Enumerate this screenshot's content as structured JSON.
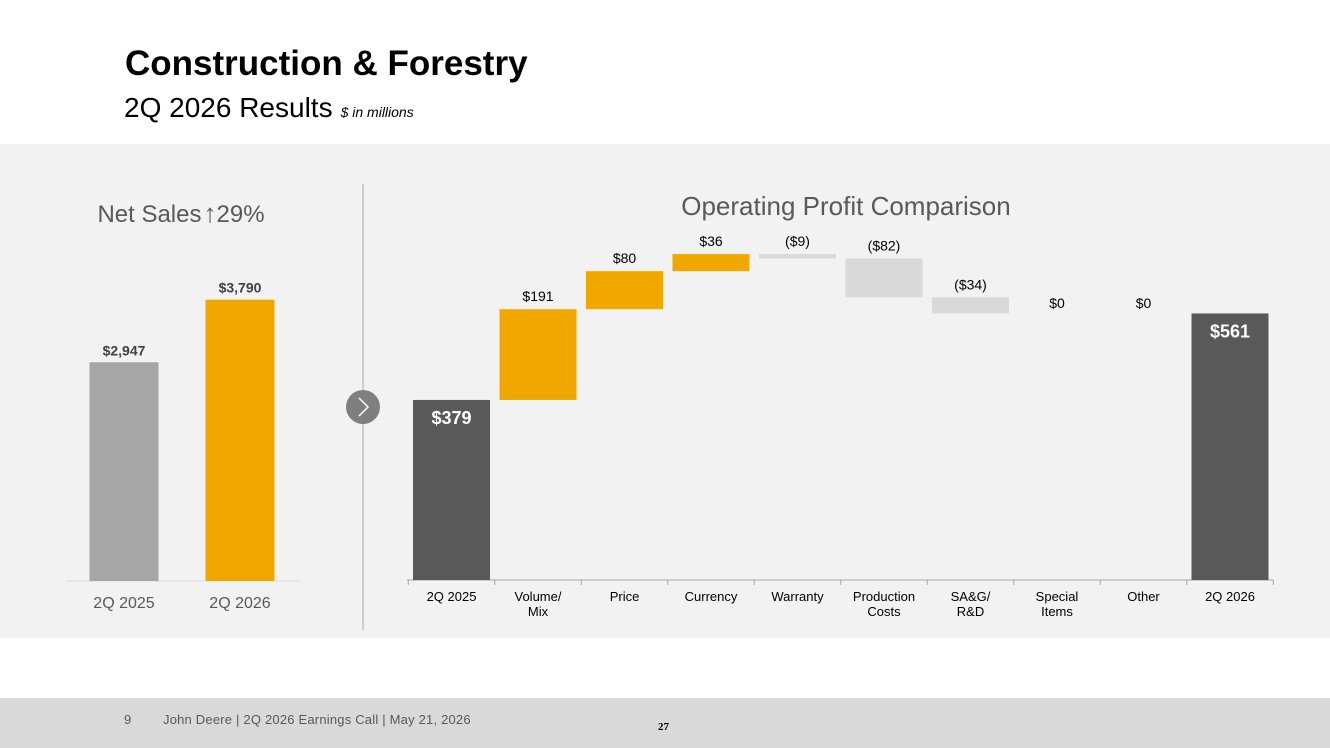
{
  "slide": {
    "title": "Construction & Forestry",
    "subtitle": "2Q 2026 Results",
    "unit_note": "$ in millions"
  },
  "footer": {
    "page": "9",
    "text": "John Deere | 2Q 2026 Earnings Call | May 21, 2026",
    "number": "27"
  },
  "icons": {
    "up_arrow": "up-arrow-icon",
    "transition": "chevron-right-icon"
  },
  "colors": {
    "yellow": "#f0a800",
    "dark_gray": "#595959",
    "light_gray": "#a6a6a6",
    "neg_gray": "#d9d9d9"
  },
  "chart_data": [
    {
      "type": "bar",
      "title_text": "Net Sales",
      "title_change": "29%",
      "categories": [
        "2Q 2025",
        "2Q 2026"
      ],
      "values": [
        2947,
        3790
      ],
      "labels": [
        "$2,947",
        "$3,790"
      ],
      "colors": [
        "#a6a6a6",
        "#f0a800"
      ],
      "ylim": [
        0,
        4000
      ]
    },
    {
      "type": "waterfall",
      "title": "Operating Profit Comparison",
      "categories": [
        "2Q 2025",
        "Volume/ Mix",
        "Price",
        "Currency",
        "Warranty",
        "Production Costs",
        "SA&G/ R&D",
        "Special Items",
        "Other",
        "2Q 2026"
      ],
      "category_lines": [
        [
          "2Q 2025"
        ],
        [
          "Volume/",
          "Mix"
        ],
        [
          "Price"
        ],
        [
          "Currency"
        ],
        [
          "Warranty"
        ],
        [
          "Production",
          "Costs"
        ],
        [
          "SA&G/",
          "R&D"
        ],
        [
          "Special",
          "Items"
        ],
        [
          "Other"
        ],
        [
          "2Q 2026"
        ]
      ],
      "values": [
        379,
        191,
        80,
        36,
        -9,
        -82,
        -34,
        0,
        0,
        561
      ],
      "kinds": [
        "total",
        "delta",
        "delta",
        "delta",
        "delta",
        "delta",
        "delta",
        "delta",
        "delta",
        "total"
      ],
      "labels": [
        "$379",
        "$191",
        "$80",
        "$36",
        "($9)",
        "($82)",
        "($34)",
        "$0",
        "$0",
        "$561"
      ],
      "ylim": [
        0,
        740
      ]
    }
  ]
}
